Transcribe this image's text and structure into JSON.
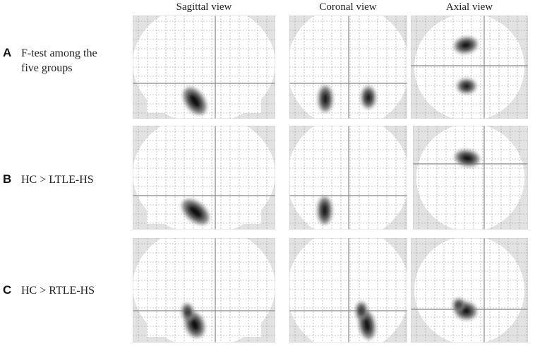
{
  "columns": [
    "Sagittal view",
    "Coronal view",
    "Axial view"
  ],
  "rows": [
    {
      "letter": "A",
      "label": [
        "F-test among the",
        "five groups"
      ]
    },
    {
      "letter": "B",
      "label": [
        "HC > LTLE-HS"
      ]
    },
    {
      "letter": "C",
      "label": [
        "HC > RTLE-HS"
      ]
    }
  ]
}
